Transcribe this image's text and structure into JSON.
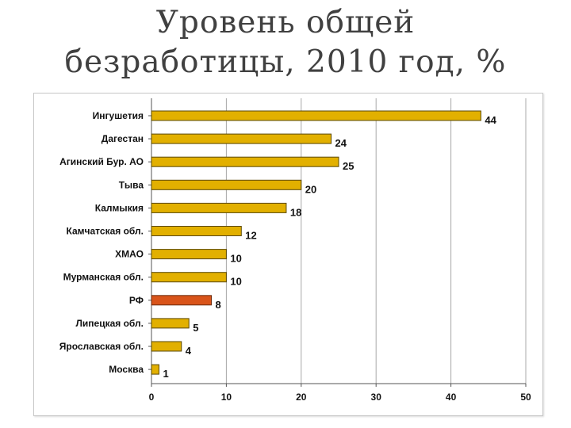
{
  "title": {
    "line1": "Уровень общей",
    "line2": "безработицы, 2010 год, %"
  },
  "colors": {
    "bar": "#E2B000",
    "bar_border": "#5a4800",
    "highlight": "#D9541A",
    "highlight_border": "#6b2a0c",
    "grid": "#a8a8a8",
    "axis": "#555555"
  },
  "chart_data": {
    "type": "bar",
    "orientation": "horizontal",
    "categories": [
      "Ингушетия",
      "Дагестан",
      "Агинский Бур. АО",
      "Тыва",
      "Калмыкия",
      "Камчатская обл.",
      "ХМАО",
      "Мурманская обл.",
      "РФ",
      "Липецкая обл.",
      "Ярославская обл.",
      "Москва"
    ],
    "values": [
      44,
      24,
      25,
      20,
      18,
      12,
      10,
      10,
      8,
      5,
      4,
      1
    ],
    "highlight_index": 8,
    "xlim": [
      0,
      50
    ],
    "xticks": [
      0,
      10,
      20,
      30,
      40,
      50
    ],
    "grid": true,
    "legend": "none"
  }
}
